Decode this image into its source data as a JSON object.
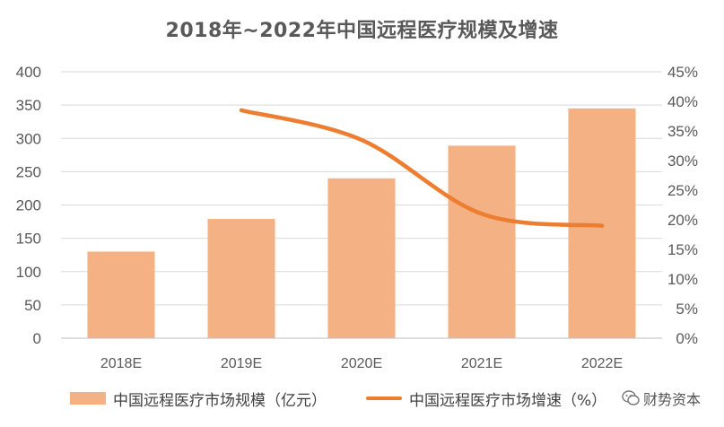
{
  "chart_data": {
    "type": "bar+line",
    "title": "2018年~2022年中国远程医疗规模及增速",
    "categories": [
      "2018E",
      "2019E",
      "2020E",
      "2021E",
      "2022E"
    ],
    "series": [
      {
        "name": "中国远程医疗市场规模（亿元）",
        "type": "bar",
        "axis": "left",
        "color": "#F4B183",
        "values": [
          130,
          179,
          240,
          289,
          345
        ]
      },
      {
        "name": "中国远程医疗市场增速（%）",
        "type": "line",
        "axis": "right",
        "color": "#ED7D31",
        "values": [
          null,
          38.5,
          33.5,
          21.0,
          19.0
        ]
      }
    ],
    "y_left": {
      "min": 0,
      "max": 400,
      "step": 50,
      "ticks": [
        "0",
        "50",
        "100",
        "150",
        "200",
        "250",
        "300",
        "350",
        "400"
      ]
    },
    "y_right": {
      "min": 0,
      "max": 45,
      "step": 5,
      "ticks": [
        "0%",
        "5%",
        "10%",
        "15%",
        "20%",
        "25%",
        "30%",
        "35%",
        "40%",
        "45%"
      ]
    },
    "grid": true,
    "legend_position": "bottom"
  },
  "legend": {
    "bar_label": "中国远程医疗市场规模（亿元）",
    "line_label": "中国远程医疗市场增速（%）"
  },
  "watermark": {
    "text": "财势资本"
  }
}
